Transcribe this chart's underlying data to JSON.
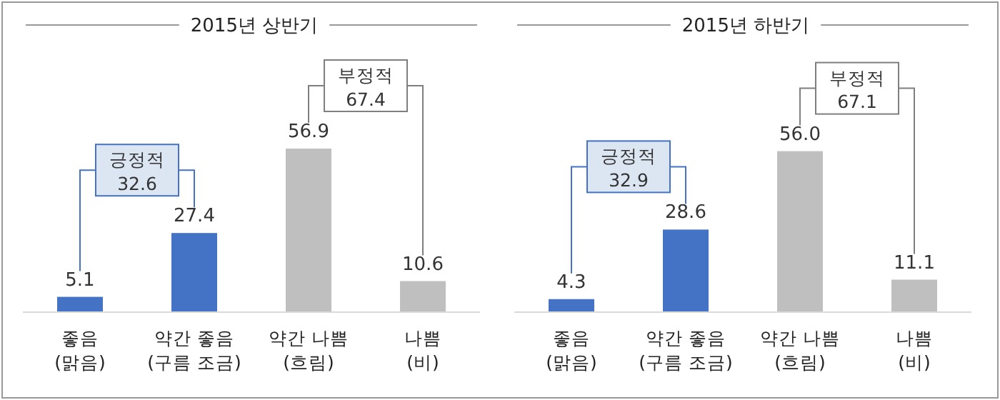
{
  "chart_data": [
    {
      "type": "bar",
      "title": "2015년 상반기",
      "categories": [
        "좋음\n(맑음)",
        "약간 좋음\n(구름 조금)",
        "약간 나쁨\n(흐림)",
        "나쁨\n(비)"
      ],
      "values": [
        5.1,
        27.4,
        56.9,
        10.6
      ],
      "colors": [
        "#4472c4",
        "#4472c4",
        "#bfbfbf",
        "#bfbfbf"
      ],
      "data_labels": true,
      "annotations": [
        "긍정적\n32.6",
        "부정적\n67.4"
      ]
    },
    {
      "type": "bar",
      "title": "2015년 하반기",
      "categories": [
        "좋음\n(맑음)",
        "약간 좋음\n(구름 조금)",
        "약간 나쁨\n(흐림)",
        "나쁨\n(비)"
      ],
      "values": [
        4.3,
        28.6,
        56.0,
        11.1
      ],
      "value_labels": [
        "4.3",
        "28.6",
        "56.0",
        "11.1"
      ],
      "colors": [
        "#4472c4",
        "#4472c4",
        "#bfbfbf",
        "#bfbfbf"
      ],
      "annotations": [
        "긍정적\n32.9",
        "부정적\n67.1"
      ]
    }
  ]
}
